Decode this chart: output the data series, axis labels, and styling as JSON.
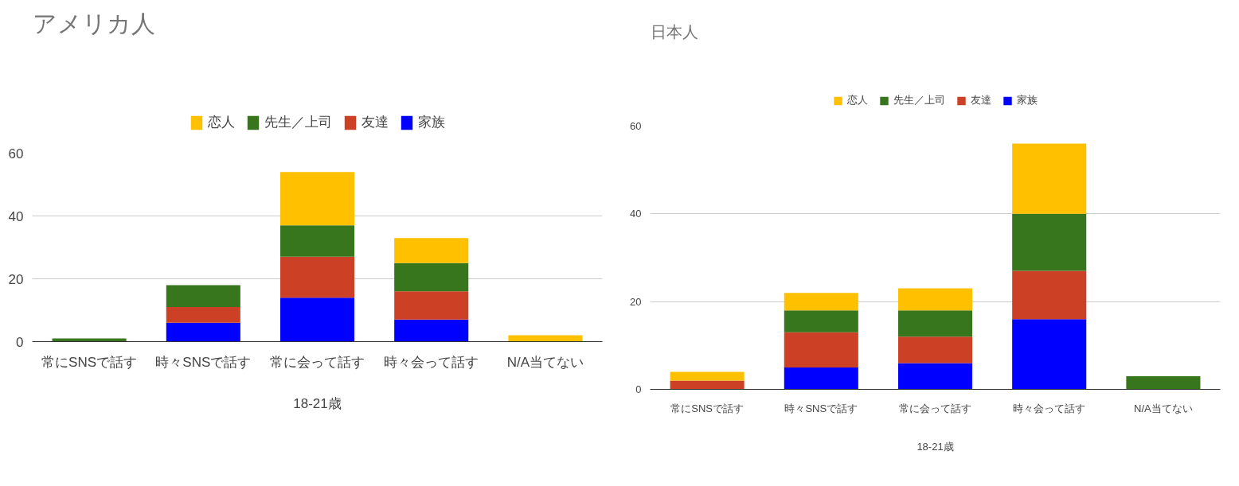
{
  "chart_data": [
    {
      "type": "bar",
      "title": "アメリカ人",
      "xlabel": "18-21歳",
      "stacked": true,
      "legend": "top",
      "grid": "y",
      "categories": [
        "常にSNSで話す",
        "時々SNSで話す",
        "常に会って話す",
        "時々会って話す",
        "N/A当てない"
      ],
      "ylim": [
        0,
        60
      ],
      "yticks": [
        0,
        20,
        40,
        60
      ],
      "series": [
        {
          "name": "家族",
          "color": "#0000ff",
          "values": [
            0,
            6,
            14,
            7,
            0
          ]
        },
        {
          "name": "友達",
          "color": "#cc4125",
          "values": [
            0,
            5,
            13,
            9,
            0
          ]
        },
        {
          "name": "先生／上司",
          "color": "#38761d",
          "values": [
            1,
            7,
            10,
            9,
            0
          ]
        },
        {
          "name": "恋人",
          "color": "#ffc000",
          "values": [
            0,
            0,
            17,
            8,
            2
          ]
        }
      ]
    },
    {
      "type": "bar",
      "title": "日本人",
      "xlabel": "18-21歳",
      "stacked": true,
      "legend": "top",
      "grid": "y",
      "categories": [
        "常にSNSで話す",
        "時々SNSで話す",
        "常に会って話す",
        "時々会って話す",
        "N/A当てない"
      ],
      "ylim": [
        0,
        60
      ],
      "yticks": [
        0,
        20,
        40,
        60
      ],
      "series": [
        {
          "name": "家族",
          "color": "#0000ff",
          "values": [
            0,
            5,
            6,
            16,
            0
          ]
        },
        {
          "name": "友達",
          "color": "#cc4125",
          "values": [
            2,
            8,
            6,
            11,
            0
          ]
        },
        {
          "name": "先生／上司",
          "color": "#38761d",
          "values": [
            0,
            5,
            6,
            13,
            3
          ]
        },
        {
          "name": "恋人",
          "color": "#ffc000",
          "values": [
            2,
            4,
            5,
            16,
            0
          ]
        }
      ]
    }
  ]
}
